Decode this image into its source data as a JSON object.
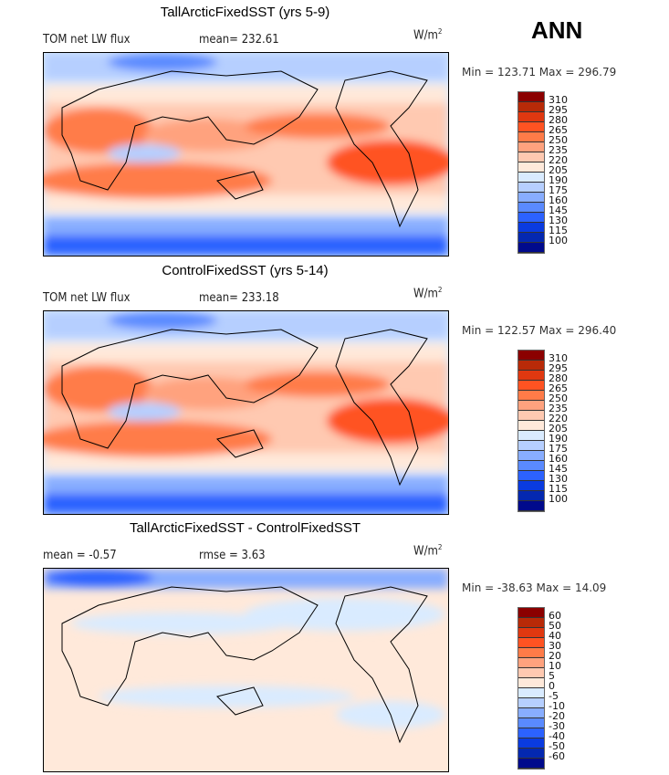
{
  "season": "ANN",
  "units_label": "W/m",
  "units_exp": "2",
  "panels": [
    {
      "title": "TallArcticFixedSST (yrs 5-9)",
      "variable": "TOM net LW flux",
      "stat": "mean= 232.61",
      "minmax": "Min = 123.71 Max = 296.79",
      "colorbar": {
        "levels": [
          "310",
          "295",
          "280",
          "265",
          "250",
          "235",
          "220",
          "205",
          "190",
          "175",
          "160",
          "145",
          "130",
          "115",
          "100"
        ]
      }
    },
    {
      "title": "ControlFixedSST (yrs 5-14)",
      "variable": "TOM net LW flux",
      "stat": "mean= 233.18",
      "minmax": "Min = 122.57 Max = 296.40",
      "colorbar": {
        "levels": [
          "310",
          "295",
          "280",
          "265",
          "250",
          "235",
          "220",
          "205",
          "190",
          "175",
          "160",
          "145",
          "130",
          "115",
          "100"
        ]
      }
    },
    {
      "title": "TallArcticFixedSST - ControlFixedSST",
      "variable": "mean =  -0.57",
      "stat": "rmse =   3.63",
      "minmax": "Min = -38.63 Max =  14.09",
      "colorbar": {
        "levels": [
          "60",
          "50",
          "40",
          "30",
          "20",
          "10",
          "5",
          "0",
          "-5",
          "-10",
          "-20",
          "-30",
          "-40",
          "-50",
          "-60"
        ]
      }
    }
  ],
  "colors": [
    "#8b0000",
    "#b82a08",
    "#e03810",
    "#ff5322",
    "#ff7b48",
    "#ffa27e",
    "#ffc9b1",
    "#ffe9da",
    "#d9ebff",
    "#b6cfff",
    "#88adff",
    "#5a8aff",
    "#2c62ff",
    "#0a3be0",
    "#0428b0",
    "#000a8c"
  ]
}
